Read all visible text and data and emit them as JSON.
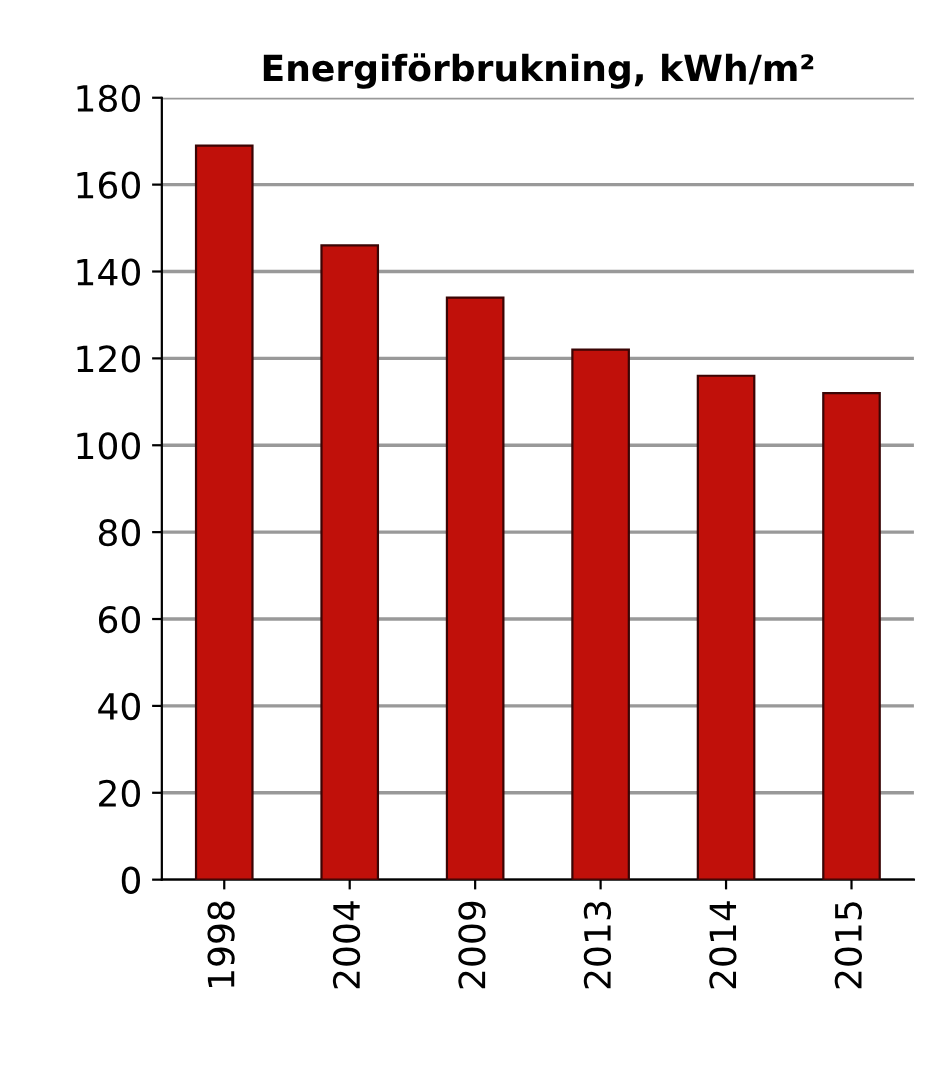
{
  "chart_data": {
    "type": "bar",
    "title": "Energiförbrukning, kWh/m²",
    "categories": [
      "1998",
      "2004",
      "2009",
      "2013",
      "2014",
      "2015"
    ],
    "values": [
      169,
      146,
      134,
      122,
      116,
      112
    ],
    "color": "#c0100a",
    "ylim": [
      0,
      180
    ],
    "yticks": [
      0,
      20,
      40,
      60,
      80,
      100,
      120,
      140,
      160,
      180
    ],
    "grid": "y"
  }
}
